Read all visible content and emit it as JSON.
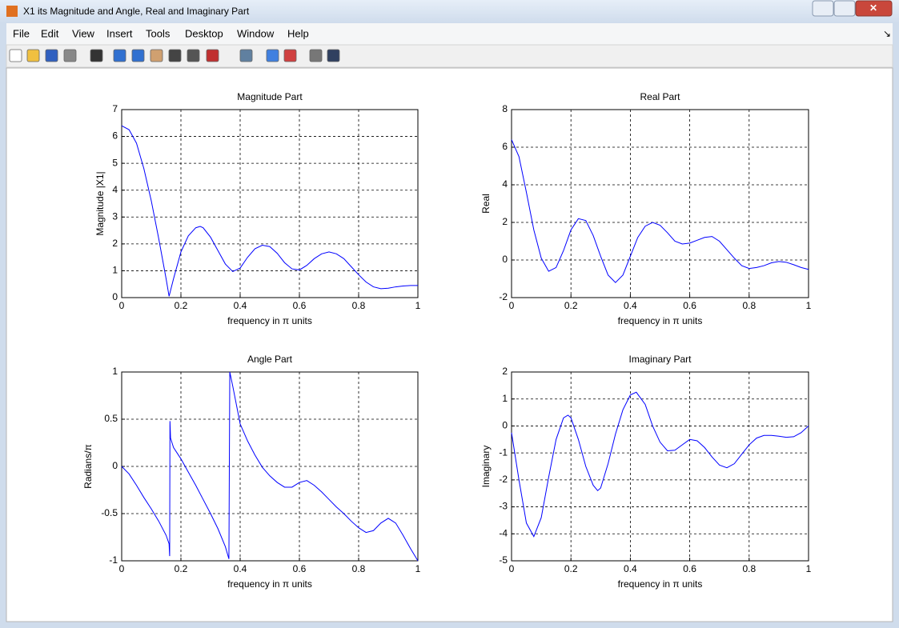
{
  "window": {
    "title": "X1 its Magnitude and Angle, Real and Imaginary Part"
  },
  "menu": [
    "File",
    "Edit",
    "View",
    "Insert",
    "Tools",
    "Desktop",
    "Window",
    "Help"
  ],
  "chart_data": [
    {
      "type": "line",
      "title": "Magnitude Part",
      "x_label": "frequency in π units",
      "y_label": "Magnitude  |X1|",
      "x": [
        0,
        0.025,
        0.05,
        0.075,
        0.1,
        0.125,
        0.15,
        0.16,
        0.175,
        0.2,
        0.225,
        0.25,
        0.265,
        0.275,
        0.3,
        0.325,
        0.35,
        0.375,
        0.4,
        0.425,
        0.45,
        0.475,
        0.5,
        0.525,
        0.55,
        0.575,
        0.6,
        0.625,
        0.65,
        0.675,
        0.7,
        0.725,
        0.75,
        0.775,
        0.8,
        0.825,
        0.85,
        0.875,
        0.9,
        0.925,
        0.95,
        0.975,
        1
      ],
      "values": [
        6.4,
        6.25,
        5.75,
        4.8,
        3.6,
        2.2,
        0.7,
        0.05,
        0.7,
        1.7,
        2.3,
        2.6,
        2.65,
        2.6,
        2.25,
        1.75,
        1.25,
        0.97,
        1.1,
        1.5,
        1.82,
        1.95,
        1.9,
        1.65,
        1.3,
        1.07,
        1.03,
        1.2,
        1.45,
        1.63,
        1.7,
        1.63,
        1.45,
        1.15,
        0.85,
        0.58,
        0.4,
        0.33,
        0.35,
        0.4,
        0.43,
        0.45,
        0.45
      ],
      "color": "#0000ff",
      "xlim": [
        0,
        1
      ],
      "ylim": [
        0,
        7
      ],
      "xticks": [
        0,
        0.2,
        0.4,
        0.6,
        0.8,
        1
      ],
      "yticks": [
        0,
        1,
        2,
        3,
        4,
        5,
        6,
        7
      ],
      "grid": true
    },
    {
      "type": "line",
      "title": "Real Part",
      "x_label": "frequency in π units",
      "y_label": "Real",
      "x": [
        0,
        0.025,
        0.05,
        0.075,
        0.1,
        0.125,
        0.15,
        0.175,
        0.2,
        0.225,
        0.25,
        0.275,
        0.3,
        0.325,
        0.35,
        0.375,
        0.4,
        0.425,
        0.45,
        0.475,
        0.5,
        0.525,
        0.55,
        0.575,
        0.6,
        0.625,
        0.65,
        0.675,
        0.7,
        0.725,
        0.75,
        0.775,
        0.8,
        0.825,
        0.85,
        0.875,
        0.9,
        0.925,
        0.95,
        0.975,
        1
      ],
      "values": [
        6.4,
        5.5,
        3.6,
        1.6,
        0.1,
        -0.6,
        -0.4,
        0.5,
        1.6,
        2.2,
        2.1,
        1.3,
        0.2,
        -0.8,
        -1.2,
        -0.8,
        0.2,
        1.2,
        1.8,
        2.0,
        1.85,
        1.45,
        1.0,
        0.85,
        0.9,
        1.05,
        1.2,
        1.25,
        1.0,
        0.55,
        0.1,
        -0.3,
        -0.45,
        -0.4,
        -0.3,
        -0.15,
        -0.08,
        -0.12,
        -0.25,
        -0.4,
        -0.5
      ],
      "color": "#0000ff",
      "xlim": [
        0,
        1
      ],
      "ylim": [
        -2,
        8
      ],
      "xticks": [
        0,
        0.2,
        0.4,
        0.6,
        0.8,
        1
      ],
      "yticks": [
        -2,
        0,
        2,
        4,
        6,
        8
      ],
      "grid": true
    },
    {
      "type": "line",
      "title": "Angle Part",
      "x_label": "frequency in π units",
      "y_label": "Radians/π",
      "x": [
        0,
        0.025,
        0.05,
        0.075,
        0.1,
        0.125,
        0.15,
        0.16,
        0.162,
        0.163,
        0.165,
        0.175,
        0.2,
        0.225,
        0.25,
        0.275,
        0.3,
        0.325,
        0.35,
        0.362,
        0.365,
        0.375,
        0.4,
        0.425,
        0.45,
        0.475,
        0.5,
        0.525,
        0.55,
        0.575,
        0.6,
        0.625,
        0.65,
        0.675,
        0.7,
        0.725,
        0.75,
        0.775,
        0.8,
        0.825,
        0.85,
        0.875,
        0.9,
        0.925,
        0.95,
        0.975,
        1
      ],
      "values": [
        0,
        -0.08,
        -0.2,
        -0.33,
        -0.45,
        -0.58,
        -0.73,
        -0.82,
        -0.95,
        0.48,
        0.3,
        0.2,
        0.08,
        -0.06,
        -0.2,
        -0.35,
        -0.5,
        -0.66,
        -0.85,
        -0.98,
        1.0,
        0.85,
        0.45,
        0.27,
        0.12,
        -0.01,
        -0.1,
        -0.17,
        -0.22,
        -0.22,
        -0.17,
        -0.15,
        -0.2,
        -0.27,
        -0.35,
        -0.43,
        -0.5,
        -0.58,
        -0.65,
        -0.7,
        -0.68,
        -0.6,
        -0.55,
        -0.6,
        -0.73,
        -0.87,
        -1.0
      ],
      "color": "#0000ff",
      "xlim": [
        0,
        1
      ],
      "ylim": [
        -1,
        1
      ],
      "xticks": [
        0,
        0.2,
        0.4,
        0.6,
        0.8,
        1
      ],
      "yticks": [
        -1,
        -0.5,
        0,
        0.5,
        1
      ],
      "grid": true
    },
    {
      "type": "line",
      "title": "Imaginary Part",
      "x_label": "frequency in π units",
      "y_label": "Imaginary",
      "x": [
        0,
        0.025,
        0.05,
        0.075,
        0.1,
        0.125,
        0.15,
        0.175,
        0.19,
        0.2,
        0.225,
        0.25,
        0.275,
        0.29,
        0.3,
        0.325,
        0.35,
        0.375,
        0.4,
        0.42,
        0.45,
        0.475,
        0.5,
        0.525,
        0.55,
        0.575,
        0.6,
        0.625,
        0.65,
        0.675,
        0.7,
        0.725,
        0.75,
        0.775,
        0.8,
        0.825,
        0.85,
        0.875,
        0.9,
        0.925,
        0.95,
        0.975,
        1
      ],
      "values": [
        -0.25,
        -2.0,
        -3.6,
        -4.1,
        -3.4,
        -1.9,
        -0.5,
        0.3,
        0.4,
        0.3,
        -0.5,
        -1.5,
        -2.2,
        -2.4,
        -2.3,
        -1.4,
        -0.3,
        0.6,
        1.15,
        1.25,
        0.8,
        0.0,
        -0.6,
        -0.92,
        -0.9,
        -0.7,
        -0.5,
        -0.55,
        -0.8,
        -1.15,
        -1.45,
        -1.55,
        -1.4,
        -1.05,
        -0.7,
        -0.45,
        -0.35,
        -0.35,
        -0.38,
        -0.42,
        -0.4,
        -0.25,
        0
      ],
      "color": "#0000ff",
      "xlim": [
        0,
        1
      ],
      "ylim": [
        -5,
        2
      ],
      "xticks": [
        0,
        0.2,
        0.4,
        0.6,
        0.8,
        1
      ],
      "yticks": [
        -5,
        -4,
        -3,
        -2,
        -1,
        0,
        1,
        2
      ],
      "grid": true
    }
  ]
}
